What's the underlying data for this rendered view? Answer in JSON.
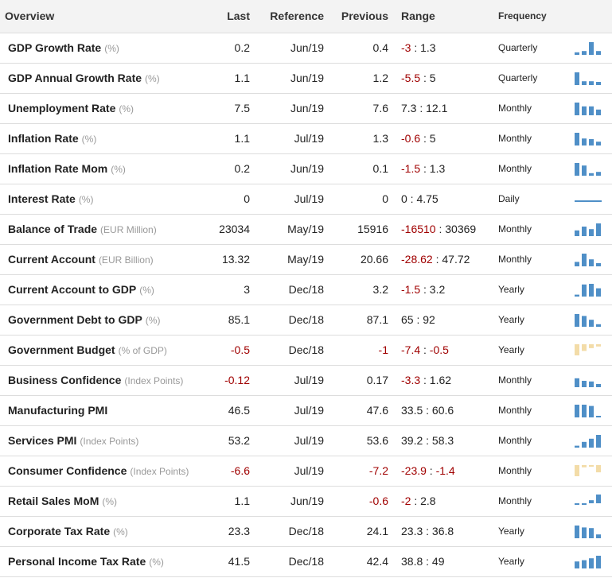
{
  "headers": {
    "overview": "Overview",
    "last": "Last",
    "reference": "Reference",
    "previous": "Previous",
    "range": "Range",
    "frequency": "Frequency"
  },
  "colors": {
    "positive_bar": "#4f8fc7",
    "negative_bar": "#f3dca8",
    "negative_text": "#a00000"
  },
  "rows": [
    {
      "name": "GDP Growth Rate",
      "unit": "(%)",
      "last": "0.2",
      "last_neg": false,
      "reference": "Jun/19",
      "previous": "0.4",
      "prev_neg": false,
      "range_low": "-3",
      "range_high": "1.3",
      "frequency": "Quarterly",
      "spark": {
        "type": "bar",
        "values": [
          0.2,
          0.3,
          1,
          0.3
        ]
      }
    },
    {
      "name": "GDP Annual Growth Rate",
      "unit": "(%)",
      "last": "1.1",
      "last_neg": false,
      "reference": "Jun/19",
      "previous": "1.2",
      "prev_neg": false,
      "range_low": "-5.5",
      "range_high": "5",
      "frequency": "Quarterly",
      "spark": {
        "type": "bar",
        "values": [
          1,
          0.3,
          0.3,
          0.25
        ]
      }
    },
    {
      "name": "Unemployment Rate",
      "unit": "(%)",
      "last": "7.5",
      "last_neg": false,
      "reference": "Jun/19",
      "previous": "7.6",
      "prev_neg": false,
      "range_low": "7.3",
      "range_high": "12.1",
      "frequency": "Monthly",
      "spark": {
        "type": "bar",
        "values": [
          1,
          0.7,
          0.7,
          0.45
        ]
      }
    },
    {
      "name": "Inflation Rate",
      "unit": "(%)",
      "last": "1.1",
      "last_neg": false,
      "reference": "Jul/19",
      "previous": "1.3",
      "prev_neg": false,
      "range_low": "-0.6",
      "range_high": "5",
      "frequency": "Monthly",
      "spark": {
        "type": "bar",
        "values": [
          1,
          0.55,
          0.5,
          0.3
        ]
      }
    },
    {
      "name": "Inflation Rate Mom",
      "unit": "(%)",
      "last": "0.2",
      "last_neg": false,
      "reference": "Jun/19",
      "previous": "0.1",
      "prev_neg": false,
      "range_low": "-1.5",
      "range_high": "1.3",
      "frequency": "Monthly",
      "spark": {
        "type": "bar",
        "values": [
          1,
          0.8,
          0.2,
          0.3
        ]
      }
    },
    {
      "name": "Interest Rate",
      "unit": "(%)",
      "last": "0",
      "last_neg": false,
      "reference": "Jul/19",
      "previous": "0",
      "prev_neg": false,
      "range_low": "0",
      "range_high": "4.75",
      "frequency": "Daily",
      "spark": {
        "type": "line"
      }
    },
    {
      "name": "Balance of Trade",
      "unit": "(EUR Million)",
      "last": "23034",
      "last_neg": false,
      "reference": "May/19",
      "previous": "15916",
      "prev_neg": false,
      "range_low": "-16510",
      "range_high": "30369",
      "frequency": "Monthly",
      "spark": {
        "type": "bar",
        "values": [
          0.45,
          0.75,
          0.55,
          1
        ]
      }
    },
    {
      "name": "Current Account",
      "unit": "(EUR Billion)",
      "last": "13.32",
      "last_neg": false,
      "reference": "May/19",
      "previous": "20.66",
      "prev_neg": false,
      "range_low": "-28.62",
      "range_high": "47.72",
      "frequency": "Monthly",
      "spark": {
        "type": "bar",
        "values": [
          0.35,
          1,
          0.55,
          0.25
        ]
      }
    },
    {
      "name": "Current Account to GDP",
      "unit": "(%)",
      "last": "3",
      "last_neg": false,
      "reference": "Dec/18",
      "previous": "3.2",
      "prev_neg": false,
      "range_low": "-1.5",
      "range_high": "3.2",
      "frequency": "Yearly",
      "spark": {
        "type": "bar",
        "values": [
          0.15,
          0.95,
          1,
          0.65
        ]
      }
    },
    {
      "name": "Government Debt to GDP",
      "unit": "(%)",
      "last": "85.1",
      "last_neg": false,
      "reference": "Dec/18",
      "previous": "87.1",
      "prev_neg": false,
      "range_low": "65",
      "range_high": "92",
      "frequency": "Yearly",
      "spark": {
        "type": "bar",
        "values": [
          1,
          0.85,
          0.55,
          0.2
        ]
      }
    },
    {
      "name": "Government Budget",
      "unit": "(% of GDP)",
      "last": "-0.5",
      "last_neg": true,
      "reference": "Dec/18",
      "previous": "-1",
      "prev_neg": true,
      "range_low": "-7.4",
      "range_high": "-0.5",
      "frequency": "Yearly",
      "spark": {
        "type": "negbar",
        "values": [
          1,
          0.6,
          0.35,
          0.2
        ]
      }
    },
    {
      "name": "Business Confidence",
      "unit": "(Index Points)",
      "last": "-0.12",
      "last_neg": true,
      "reference": "Jul/19",
      "previous": "0.17",
      "prev_neg": false,
      "range_low": "-3.3",
      "range_high": "1.62",
      "frequency": "Monthly",
      "spark": {
        "type": "bar",
        "values": [
          0.7,
          0.5,
          0.45,
          0.25
        ]
      }
    },
    {
      "name": "Manufacturing PMI",
      "unit": "",
      "last": "46.5",
      "last_neg": false,
      "reference": "Jul/19",
      "previous": "47.6",
      "prev_neg": false,
      "range_low": "33.5",
      "range_high": "60.6",
      "frequency": "Monthly",
      "spark": {
        "type": "bar",
        "values": [
          1,
          1,
          0.9,
          0.1
        ]
      }
    },
    {
      "name": "Services PMI",
      "unit": "(Index Points)",
      "last": "53.2",
      "last_neg": false,
      "reference": "Jul/19",
      "previous": "53.6",
      "prev_neg": false,
      "range_low": "39.2",
      "range_high": "58.3",
      "frequency": "Monthly",
      "spark": {
        "type": "bar",
        "values": [
          0.15,
          0.45,
          0.7,
          1
        ]
      }
    },
    {
      "name": "Consumer Confidence",
      "unit": "(Index Points)",
      "last": "-6.6",
      "last_neg": true,
      "reference": "Jul/19",
      "previous": "-7.2",
      "prev_neg": true,
      "range_low": "-23.9",
      "range_high": "-1.4",
      "frequency": "Monthly",
      "spark": {
        "type": "negbar",
        "values": [
          1,
          0.2,
          0.15,
          0.65
        ]
      }
    },
    {
      "name": "Retail Sales MoM",
      "unit": "(%)",
      "last": "1.1",
      "last_neg": false,
      "reference": "Jun/19",
      "previous": "-0.6",
      "prev_neg": true,
      "range_low": "-2",
      "range_high": "2.8",
      "frequency": "Monthly",
      "spark": {
        "type": "mixed",
        "values": [
          -0.15,
          -0.15,
          0.35,
          1
        ]
      }
    },
    {
      "name": "Corporate Tax Rate",
      "unit": "(%)",
      "last": "23.3",
      "last_neg": false,
      "reference": "Dec/18",
      "previous": "24.1",
      "prev_neg": false,
      "range_low": "23.3",
      "range_high": "36.8",
      "frequency": "Yearly",
      "spark": {
        "type": "bar",
        "values": [
          1,
          0.85,
          0.8,
          0.3
        ]
      }
    },
    {
      "name": "Personal Income Tax Rate",
      "unit": "(%)",
      "last": "41.5",
      "last_neg": false,
      "reference": "Dec/18",
      "previous": "42.4",
      "prev_neg": false,
      "range_low": "38.8",
      "range_high": "49",
      "frequency": "Yearly",
      "spark": {
        "type": "bar",
        "values": [
          0.55,
          0.65,
          0.8,
          1
        ]
      }
    }
  ]
}
